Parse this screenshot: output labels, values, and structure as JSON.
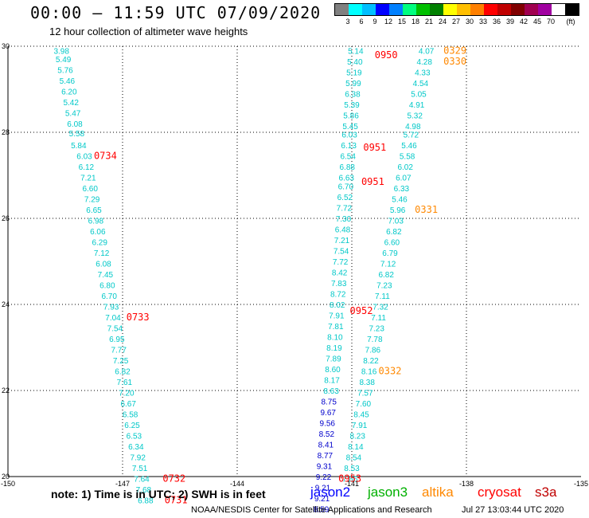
{
  "header": {
    "title": "00:00 – 11:59 UTC 07/09/2020",
    "subtitle": "12 hour collection of altimeter wave heights"
  },
  "colorbar": {
    "unit": "(ft)",
    "colors": [
      "#808080",
      "#00ffff",
      "#00bfff",
      "#0000ff",
      "#0080ff",
      "#00ff80",
      "#00c000",
      "#008000",
      "#ffff00",
      "#ffbf00",
      "#ff8000",
      "#ff0000",
      "#c00000",
      "#800000",
      "#a00050",
      "#a000a0",
      "#ffffff",
      "#000000"
    ],
    "labels": [
      "3",
      "6",
      "9",
      "12",
      "15",
      "18",
      "21",
      "24",
      "27",
      "30",
      "33",
      "36",
      "39",
      "42",
      "45",
      "70",
      "(ft)"
    ]
  },
  "chart_data": {
    "type": "scatter",
    "title": "00:00 – 11:59 UTC 07/09/2020",
    "subtitle": "12 hour collection of altimeter wave heights",
    "xlim": [
      -150,
      -135
    ],
    "ylim": [
      20,
      30
    ],
    "xticks": [
      "-150",
      "-147",
      "-144",
      "-141",
      "-138",
      "-135"
    ],
    "yticks": [
      "20",
      "22",
      "24",
      "26",
      "28",
      "30"
    ],
    "grid": true,
    "series": [
      {
        "name": "jason3",
        "color": "#00c8c8",
        "points": [
          {
            "lon": -148.6,
            "lat": 29.9,
            "v": "3.98"
          },
          {
            "lon": -148.55,
            "lat": 29.7,
            "v": "5.49"
          },
          {
            "lon": -148.5,
            "lat": 29.45,
            "v": "5.76"
          },
          {
            "lon": -148.45,
            "lat": 29.2,
            "v": "5.46"
          },
          {
            "lon": -148.4,
            "lat": 28.95,
            "v": "6.20"
          },
          {
            "lon": -148.35,
            "lat": 28.7,
            "v": "5.42"
          },
          {
            "lon": -148.3,
            "lat": 28.45,
            "v": "5.47"
          },
          {
            "lon": -148.25,
            "lat": 28.2,
            "v": "6.08"
          },
          {
            "lon": -148.2,
            "lat": 27.98,
            "v": "5.58"
          },
          {
            "lon": -148.15,
            "lat": 27.7,
            "v": "5.84"
          },
          {
            "lon": -148.0,
            "lat": 27.45,
            "v": "6.03"
          },
          {
            "lon": -147.95,
            "lat": 27.2,
            "v": "6.12"
          },
          {
            "lon": -147.9,
            "lat": 26.95,
            "v": "7.21"
          },
          {
            "lon": -147.85,
            "lat": 26.7,
            "v": "6.60"
          },
          {
            "lon": -147.8,
            "lat": 26.45,
            "v": "7.29"
          },
          {
            "lon": -147.75,
            "lat": 26.2,
            "v": "6.65"
          },
          {
            "lon": -147.7,
            "lat": 25.95,
            "v": "6.98"
          },
          {
            "lon": -147.65,
            "lat": 25.7,
            "v": "6.06"
          },
          {
            "lon": -147.6,
            "lat": 25.45,
            "v": "6.29"
          },
          {
            "lon": -147.55,
            "lat": 25.2,
            "v": "7.12"
          },
          {
            "lon": -147.5,
            "lat": 24.95,
            "v": "6.08"
          },
          {
            "lon": -147.45,
            "lat": 24.7,
            "v": "7.45"
          },
          {
            "lon": -147.4,
            "lat": 24.45,
            "v": "6.80"
          },
          {
            "lon": -147.35,
            "lat": 24.2,
            "v": "6.70"
          },
          {
            "lon": -147.3,
            "lat": 23.95,
            "v": "7.93"
          },
          {
            "lon": -147.25,
            "lat": 23.7,
            "v": "7.04"
          },
          {
            "lon": -147.2,
            "lat": 23.45,
            "v": "7.54"
          },
          {
            "lon": -147.15,
            "lat": 23.2,
            "v": "6.95"
          },
          {
            "lon": -147.1,
            "lat": 22.95,
            "v": "7.77"
          },
          {
            "lon": -147.05,
            "lat": 22.7,
            "v": "7.25"
          },
          {
            "lon": -147.0,
            "lat": 22.45,
            "v": "6.82"
          },
          {
            "lon": -146.95,
            "lat": 22.2,
            "v": "7.61"
          },
          {
            "lon": -146.9,
            "lat": 21.95,
            "v": "7.20"
          },
          {
            "lon": -146.85,
            "lat": 21.7,
            "v": "6.67"
          },
          {
            "lon": -146.8,
            "lat": 21.45,
            "v": "6.58"
          },
          {
            "lon": -146.75,
            "lat": 21.2,
            "v": "6.25"
          },
          {
            "lon": -146.7,
            "lat": 20.95,
            "v": "6.53"
          },
          {
            "lon": -146.65,
            "lat": 20.7,
            "v": "6.34"
          },
          {
            "lon": -146.6,
            "lat": 20.45,
            "v": "7.92"
          },
          {
            "lon": -146.55,
            "lat": 20.2,
            "v": "7.51"
          },
          {
            "lon": -146.5,
            "lat": 19.95,
            "v": "7.64"
          },
          {
            "lon": -146.45,
            "lat": 19.7,
            "v": "7.68"
          },
          {
            "lon": -146.4,
            "lat": 19.45,
            "v": "6.88"
          },
          {
            "lon": -140.9,
            "lat": 29.9,
            "v": "5.14"
          },
          {
            "lon": -140.92,
            "lat": 29.65,
            "v": "5.40"
          },
          {
            "lon": -140.94,
            "lat": 29.4,
            "v": "5.19"
          },
          {
            "lon": -140.96,
            "lat": 29.15,
            "v": "5.99"
          },
          {
            "lon": -140.98,
            "lat": 28.9,
            "v": "6.38"
          },
          {
            "lon": -141.0,
            "lat": 28.65,
            "v": "5.39"
          },
          {
            "lon": -141.02,
            "lat": 28.4,
            "v": "5.86"
          },
          {
            "lon": -141.04,
            "lat": 28.15,
            "v": "5.45"
          },
          {
            "lon": -141.06,
            "lat": 27.95,
            "v": "6.03"
          },
          {
            "lon": -141.08,
            "lat": 27.7,
            "v": "6.13"
          },
          {
            "lon": -141.1,
            "lat": 27.45,
            "v": "6.54"
          },
          {
            "lon": -141.12,
            "lat": 27.2,
            "v": "6.88"
          },
          {
            "lon": -141.14,
            "lat": 26.95,
            "v": "6.63"
          },
          {
            "lon": -141.16,
            "lat": 26.75,
            "v": "6.70"
          },
          {
            "lon": -141.18,
            "lat": 26.5,
            "v": "6.52"
          },
          {
            "lon": -141.2,
            "lat": 26.25,
            "v": "7.72"
          },
          {
            "lon": -141.22,
            "lat": 26.0,
            "v": "7.30"
          },
          {
            "lon": -141.24,
            "lat": 25.75,
            "v": "6.48"
          },
          {
            "lon": -141.26,
            "lat": 25.5,
            "v": "7.21"
          },
          {
            "lon": -141.28,
            "lat": 25.25,
            "v": "7.54"
          },
          {
            "lon": -141.3,
            "lat": 25.0,
            "v": "7.72"
          },
          {
            "lon": -141.32,
            "lat": 24.75,
            "v": "8.42"
          },
          {
            "lon": -141.34,
            "lat": 24.5,
            "v": "7.83"
          },
          {
            "lon": -141.36,
            "lat": 24.25,
            "v": "8.72"
          },
          {
            "lon": -141.38,
            "lat": 24.0,
            "v": "8.02"
          },
          {
            "lon": -141.4,
            "lat": 23.75,
            "v": "7.91"
          },
          {
            "lon": -141.42,
            "lat": 23.5,
            "v": "7.81"
          },
          {
            "lon": -141.44,
            "lat": 23.25,
            "v": "8.10"
          },
          {
            "lon": -141.46,
            "lat": 23.0,
            "v": "8.19"
          },
          {
            "lon": -141.48,
            "lat": 22.75,
            "v": "7.89"
          },
          {
            "lon": -141.5,
            "lat": 22.5,
            "v": "8.60"
          },
          {
            "lon": -141.52,
            "lat": 22.25,
            "v": "8.17"
          },
          {
            "lon": -141.54,
            "lat": 22.0,
            "v": "8.63"
          },
          {
            "lon": -139.05,
            "lat": 29.9,
            "v": "4.07"
          },
          {
            "lon": -139.1,
            "lat": 29.65,
            "v": "4.28"
          },
          {
            "lon": -139.15,
            "lat": 29.4,
            "v": "4.33"
          },
          {
            "lon": -139.2,
            "lat": 29.15,
            "v": "4.54"
          },
          {
            "lon": -139.25,
            "lat": 28.9,
            "v": "5.05"
          },
          {
            "lon": -139.3,
            "lat": 28.65,
            "v": "4.91"
          },
          {
            "lon": -139.35,
            "lat": 28.4,
            "v": "5.32"
          },
          {
            "lon": -139.4,
            "lat": 28.15,
            "v": "4.98"
          },
          {
            "lon": -139.45,
            "lat": 27.95,
            "v": "5.72"
          },
          {
            "lon": -139.5,
            "lat": 27.7,
            "v": "5.46"
          },
          {
            "lon": -139.55,
            "lat": 27.45,
            "v": "5.58"
          },
          {
            "lon": -139.6,
            "lat": 27.2,
            "v": "6.02"
          },
          {
            "lon": -139.65,
            "lat": 26.95,
            "v": "6.07"
          },
          {
            "lon": -139.7,
            "lat": 26.7,
            "v": "6.33"
          },
          {
            "lon": -139.75,
            "lat": 26.45,
            "v": "5.46"
          },
          {
            "lon": -139.8,
            "lat": 26.2,
            "v": "5.96"
          },
          {
            "lon": -139.85,
            "lat": 25.95,
            "v": "7.03"
          },
          {
            "lon": -139.9,
            "lat": 25.7,
            "v": "6.82"
          },
          {
            "lon": -139.95,
            "lat": 25.45,
            "v": "6.60"
          },
          {
            "lon": -140.0,
            "lat": 25.2,
            "v": "6.79"
          },
          {
            "lon": -140.05,
            "lat": 24.95,
            "v": "7.12"
          },
          {
            "lon": -140.1,
            "lat": 24.7,
            "v": "6.82"
          },
          {
            "lon": -140.15,
            "lat": 24.45,
            "v": "7.23"
          },
          {
            "lon": -140.2,
            "lat": 24.2,
            "v": "7.11"
          },
          {
            "lon": -140.25,
            "lat": 23.95,
            "v": "7.32"
          },
          {
            "lon": -140.3,
            "lat": 23.7,
            "v": "7.11"
          },
          {
            "lon": -140.35,
            "lat": 23.45,
            "v": "7.23"
          },
          {
            "lon": -140.4,
            "lat": 23.2,
            "v": "7.78"
          },
          {
            "lon": -140.45,
            "lat": 22.95,
            "v": "7.86"
          },
          {
            "lon": -140.5,
            "lat": 22.7,
            "v": "8.22"
          },
          {
            "lon": -140.55,
            "lat": 22.45,
            "v": "8.16"
          },
          {
            "lon": -140.6,
            "lat": 22.2,
            "v": "8.38"
          },
          {
            "lon": -140.65,
            "lat": 21.95,
            "v": "7.57"
          },
          {
            "lon": -140.7,
            "lat": 21.7,
            "v": "7.60"
          },
          {
            "lon": -140.75,
            "lat": 21.45,
            "v": "8.45"
          },
          {
            "lon": -140.8,
            "lat": 21.2,
            "v": "7.91"
          },
          {
            "lon": -140.85,
            "lat": 20.95,
            "v": "8.23"
          },
          {
            "lon": -140.9,
            "lat": 20.7,
            "v": "8.14"
          },
          {
            "lon": -140.95,
            "lat": 20.45,
            "v": "8.54"
          },
          {
            "lon": -141.0,
            "lat": 20.2,
            "v": "8.53"
          },
          {
            "lon": -141.05,
            "lat": 19.95,
            "v": "7.86"
          }
        ]
      },
      {
        "name": "jason2",
        "color": "#0000cc",
        "points": [
          {
            "lon": -141.6,
            "lat": 21.75,
            "v": "8.75"
          },
          {
            "lon": -141.62,
            "lat": 21.5,
            "v": "9.67"
          },
          {
            "lon": -141.64,
            "lat": 21.25,
            "v": "9.56"
          },
          {
            "lon": -141.66,
            "lat": 21.0,
            "v": "8.52"
          },
          {
            "lon": -141.68,
            "lat": 20.75,
            "v": "8.41"
          },
          {
            "lon": -141.7,
            "lat": 20.5,
            "v": "8.77"
          },
          {
            "lon": -141.72,
            "lat": 20.25,
            "v": "9.31"
          },
          {
            "lon": -141.74,
            "lat": 20.0,
            "v": "9.22"
          },
          {
            "lon": -141.76,
            "lat": 19.75,
            "v": "9.21"
          },
          {
            "lon": -141.78,
            "lat": 19.5,
            "v": "9.21"
          },
          {
            "lon": -141.8,
            "lat": 19.25,
            "v": "8.59"
          }
        ]
      },
      {
        "name": "cryosat",
        "color": "#ff0000",
        "points": [
          {
            "lon": -147.45,
            "lat": 27.45,
            "v": "0734"
          },
          {
            "lon": -146.6,
            "lat": 23.7,
            "v": "0733"
          },
          {
            "lon": -145.65,
            "lat": 19.95,
            "v": "0732"
          },
          {
            "lon": -145.6,
            "lat": 19.45,
            "v": "0731"
          },
          {
            "lon": -140.1,
            "lat": 29.8,
            "v": "0950"
          },
          {
            "lon": -140.4,
            "lat": 27.65,
            "v": "0951"
          },
          {
            "lon": -140.45,
            "lat": 26.85,
            "v": "0951"
          },
          {
            "lon": -140.75,
            "lat": 23.85,
            "v": "0952"
          },
          {
            "lon": -141.05,
            "lat": 19.95,
            "v": "0953"
          }
        ]
      },
      {
        "name": "altika",
        "color": "#ff8800",
        "points": [
          {
            "lon": -138.3,
            "lat": 29.9,
            "v": "0329"
          },
          {
            "lon": -138.3,
            "lat": 29.65,
            "v": "0330"
          },
          {
            "lon": -139.05,
            "lat": 26.2,
            "v": "0331"
          },
          {
            "lon": -140.0,
            "lat": 22.45,
            "v": "0332"
          }
        ]
      }
    ]
  },
  "note": "note: 1) Time is in UTC; 2) SWH is in feet",
  "satellites": [
    {
      "label": "jason2",
      "color": "#0000ff"
    },
    {
      "label": "jason3",
      "color": "#00b000"
    },
    {
      "label": "altika",
      "color": "#ff8800"
    },
    {
      "label": "cryosat",
      "color": "#ff0000"
    },
    {
      "label": "s3a",
      "color": "#c00000"
    }
  ],
  "footer": {
    "credit": "NOAA/NESDIS Center for Satellite Applications and Research",
    "timestamp": "Jul 27 13:03:44 UTC 2020"
  }
}
